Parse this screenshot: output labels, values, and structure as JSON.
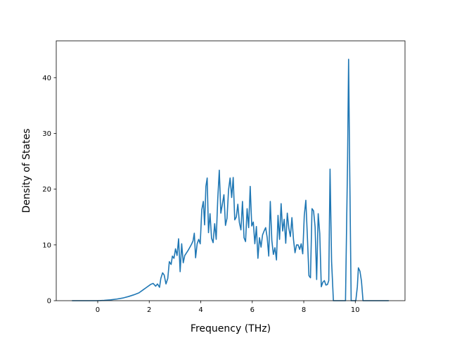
{
  "chart_data": {
    "type": "line",
    "title": "",
    "xlabel": "Frequency (THz)",
    "ylabel": "Density of States",
    "xlim": [
      -1.61,
      11.93
    ],
    "ylim": [
      0,
      46.6
    ],
    "xticks": [
      0,
      2,
      4,
      6,
      8,
      10
    ],
    "yticks": [
      0,
      10,
      20,
      30,
      40
    ],
    "grid": false,
    "legend": "none",
    "series": [
      {
        "color": "#1f77b4",
        "points": [
          [
            -1.0,
            0.0
          ],
          [
            -0.5,
            0.0
          ],
          [
            0.0,
            0.0
          ],
          [
            0.25,
            0.05
          ],
          [
            0.5,
            0.15
          ],
          [
            0.75,
            0.3
          ],
          [
            1.0,
            0.5
          ],
          [
            1.2,
            0.75
          ],
          [
            1.4,
            1.05
          ],
          [
            1.6,
            1.4
          ],
          [
            1.75,
            1.9
          ],
          [
            1.9,
            2.4
          ],
          [
            2.05,
            2.9
          ],
          [
            2.15,
            3.1
          ],
          [
            2.25,
            2.6
          ],
          [
            2.32,
            3.0
          ],
          [
            2.4,
            2.4
          ],
          [
            2.45,
            4.0
          ],
          [
            2.52,
            5.0
          ],
          [
            2.58,
            4.6
          ],
          [
            2.65,
            3.0
          ],
          [
            2.72,
            4.0
          ],
          [
            2.78,
            7.0
          ],
          [
            2.85,
            6.5
          ],
          [
            2.9,
            8.0
          ],
          [
            2.96,
            7.6
          ],
          [
            3.02,
            9.3
          ],
          [
            3.08,
            8.1
          ],
          [
            3.14,
            11.1
          ],
          [
            3.2,
            5.2
          ],
          [
            3.26,
            10.2
          ],
          [
            3.32,
            6.8
          ],
          [
            3.38,
            8.1
          ],
          [
            3.45,
            8.6
          ],
          [
            3.52,
            9.1
          ],
          [
            3.58,
            9.6
          ],
          [
            3.64,
            10.1
          ],
          [
            3.7,
            10.7
          ],
          [
            3.75,
            12.1
          ],
          [
            3.8,
            7.7
          ],
          [
            3.86,
            10.2
          ],
          [
            3.92,
            11.0
          ],
          [
            3.98,
            10.2
          ],
          [
            4.04,
            16.3
          ],
          [
            4.1,
            17.8
          ],
          [
            4.15,
            13.6
          ],
          [
            4.2,
            20.5
          ],
          [
            4.25,
            22.0
          ],
          [
            4.3,
            12.2
          ],
          [
            4.36,
            15.6
          ],
          [
            4.42,
            11.2
          ],
          [
            4.48,
            10.4
          ],
          [
            4.54,
            13.8
          ],
          [
            4.6,
            11.0
          ],
          [
            4.66,
            18.2
          ],
          [
            4.72,
            23.4
          ],
          [
            4.78,
            15.7
          ],
          [
            4.84,
            17.3
          ],
          [
            4.9,
            19.0
          ],
          [
            4.96,
            13.5
          ],
          [
            5.02,
            14.8
          ],
          [
            5.08,
            19.9
          ],
          [
            5.14,
            22.0
          ],
          [
            5.2,
            18.5
          ],
          [
            5.26,
            22.1
          ],
          [
            5.32,
            14.5
          ],
          [
            5.38,
            15.0
          ],
          [
            5.44,
            17.3
          ],
          [
            5.5,
            14.0
          ],
          [
            5.56,
            12.7
          ],
          [
            5.62,
            17.8
          ],
          [
            5.68,
            11.3
          ],
          [
            5.74,
            10.6
          ],
          [
            5.8,
            16.5
          ],
          [
            5.86,
            13.1
          ],
          [
            5.92,
            20.5
          ],
          [
            5.98,
            13.4
          ],
          [
            6.04,
            14.1
          ],
          [
            6.1,
            10.2
          ],
          [
            6.16,
            13.3
          ],
          [
            6.22,
            7.6
          ],
          [
            6.28,
            11.3
          ],
          [
            6.34,
            9.6
          ],
          [
            6.4,
            11.8
          ],
          [
            6.46,
            12.5
          ],
          [
            6.52,
            13.1
          ],
          [
            6.58,
            11.3
          ],
          [
            6.64,
            8.0
          ],
          [
            6.7,
            17.8
          ],
          [
            6.76,
            10.8
          ],
          [
            6.82,
            8.3
          ],
          [
            6.88,
            9.5
          ],
          [
            6.94,
            7.3
          ],
          [
            7.0,
            15.3
          ],
          [
            7.06,
            11.0
          ],
          [
            7.12,
            17.4
          ],
          [
            7.18,
            12.5
          ],
          [
            7.24,
            14.6
          ],
          [
            7.3,
            10.3
          ],
          [
            7.36,
            15.7
          ],
          [
            7.42,
            13.0
          ],
          [
            7.48,
            11.5
          ],
          [
            7.54,
            14.9
          ],
          [
            7.6,
            11.0
          ],
          [
            7.66,
            8.6
          ],
          [
            7.72,
            10.0
          ],
          [
            7.78,
            10.0
          ],
          [
            7.84,
            9.2
          ],
          [
            7.9,
            10.2
          ],
          [
            7.96,
            8.4
          ],
          [
            8.02,
            15.3
          ],
          [
            8.08,
            18.0
          ],
          [
            8.14,
            11.5
          ],
          [
            8.2,
            4.5
          ],
          [
            8.26,
            4.1
          ],
          [
            8.32,
            16.5
          ],
          [
            8.38,
            16.1
          ],
          [
            8.44,
            13.2
          ],
          [
            8.5,
            3.8
          ],
          [
            8.56,
            15.6
          ],
          [
            8.62,
            12.1
          ],
          [
            8.68,
            2.5
          ],
          [
            8.74,
            3.3
          ],
          [
            8.8,
            3.6
          ],
          [
            8.86,
            2.8
          ],
          [
            8.92,
            2.9
          ],
          [
            8.97,
            3.6
          ],
          [
            9.02,
            23.6
          ],
          [
            9.08,
            7.0
          ],
          [
            9.15,
            0.0
          ],
          [
            9.3,
            0.0
          ],
          [
            9.5,
            0.0
          ],
          [
            9.62,
            0.0
          ],
          [
            9.7,
            25.0
          ],
          [
            9.74,
            43.3
          ],
          [
            9.78,
            25.0
          ],
          [
            9.84,
            0.0
          ],
          [
            9.95,
            0.0
          ],
          [
            10.02,
            0.0
          ],
          [
            10.08,
            2.5
          ],
          [
            10.12,
            5.9
          ],
          [
            10.18,
            5.3
          ],
          [
            10.24,
            3.5
          ],
          [
            10.3,
            0.0
          ],
          [
            10.5,
            0.0
          ],
          [
            11.0,
            0.0
          ],
          [
            11.3,
            0.0
          ]
        ]
      }
    ]
  }
}
